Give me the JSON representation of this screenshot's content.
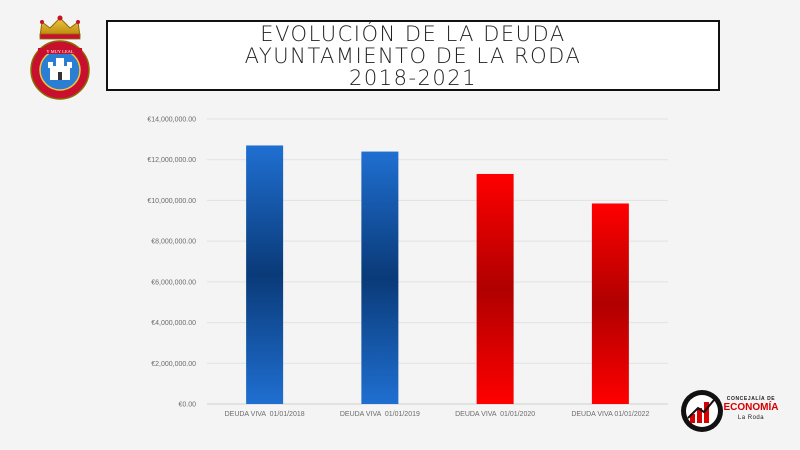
{
  "title": {
    "line1": "EVOLUCIÓN DE LA DEUDA",
    "line2": "AYUNTAMIENTO DE LA RODA",
    "line3": "2018-2021"
  },
  "crest": {
    "motto": "Y MUY LEAL"
  },
  "logo": {
    "small": "CONCEJALÍA DE",
    "main": "ECONOMÍA",
    "sub": "La Roda"
  },
  "chart_data": {
    "type": "bar",
    "categories": [
      "DEUDA VIVA  01/01/2018",
      "DEUDA VIVA  01/01/2019",
      "DEUDA VIVA  01/01/2020",
      "DEUDA VIVA 01/01/2022"
    ],
    "values": [
      12700000,
      12400000,
      11300000,
      9850000
    ],
    "bar_colors": [
      "#1f6fd1",
      "#1f6fd1",
      "#ff0000",
      "#ff0000"
    ],
    "ylim": [
      0,
      14000000
    ],
    "yticks": [
      0,
      2000000,
      4000000,
      6000000,
      8000000,
      10000000,
      12000000,
      14000000
    ],
    "ytick_labels": [
      "€0.00",
      "€2,000,000.00",
      "€4,000,000.00",
      "€6,000,000.00",
      "€8,000,000.00",
      "€10,000,000.00",
      "€12,000,000.00",
      "€14,000,000.00"
    ],
    "grid": true,
    "title": "",
    "xlabel": "",
    "ylabel": ""
  }
}
